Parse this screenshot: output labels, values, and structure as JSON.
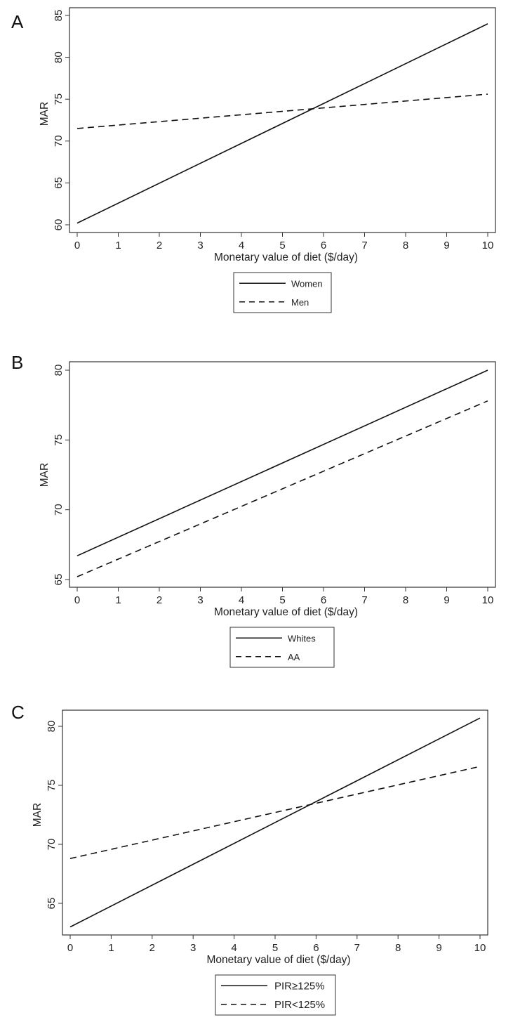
{
  "figure": {
    "panels": [
      {
        "letter": "A",
        "ylabel": "MAR",
        "xlabel": "Monetary value of diet ($/day)",
        "legend": [
          "Women",
          "Men"
        ]
      },
      {
        "letter": "B",
        "ylabel": "MAR",
        "xlabel": "Monetary value of diet ($/day)",
        "legend": [
          "Whites",
          "AA"
        ]
      },
      {
        "letter": "C",
        "ylabel": "MAR",
        "xlabel": "Monetary value of diet ($/day)",
        "legend": [
          "PIR≥125%",
          "PIR<125%"
        ]
      }
    ]
  },
  "chart_data": [
    {
      "panel": "A",
      "type": "line",
      "title": "",
      "xlabel": "Monetary value of diet ($/day)",
      "ylabel": "MAR",
      "x": [
        0,
        10
      ],
      "xlim": [
        0,
        10
      ],
      "ylim": [
        59,
        86
      ],
      "xticks": [
        0,
        1,
        2,
        3,
        4,
        5,
        6,
        7,
        8,
        9,
        10
      ],
      "yticks": [
        60,
        65,
        70,
        75,
        80,
        85
      ],
      "grid": false,
      "legend_position": "bottom-center",
      "series": [
        {
          "name": "Women",
          "style": "solid",
          "values": [
            60.2,
            84.0
          ]
        },
        {
          "name": "Men",
          "style": "dashed",
          "values": [
            71.5,
            75.6
          ]
        }
      ]
    },
    {
      "panel": "B",
      "type": "line",
      "title": "",
      "xlabel": "Monetary value of diet ($/day)",
      "ylabel": "MAR",
      "x": [
        0,
        10
      ],
      "xlim": [
        0,
        10
      ],
      "ylim": [
        64.5,
        80.6
      ],
      "xticks": [
        0,
        1,
        2,
        3,
        4,
        5,
        6,
        7,
        8,
        9,
        10
      ],
      "yticks": [
        65,
        70,
        75,
        80
      ],
      "grid": false,
      "legend_position": "bottom-center",
      "series": [
        {
          "name": "Whites",
          "style": "solid",
          "values": [
            66.7,
            80.0
          ]
        },
        {
          "name": "AA",
          "style": "dashed",
          "values": [
            65.2,
            77.8
          ]
        }
      ]
    },
    {
      "panel": "C",
      "type": "line",
      "title": "",
      "xlabel": "Monetary value of diet ($/day)",
      "ylabel": "MAR",
      "x": [
        0,
        10
      ],
      "xlim": [
        0,
        10
      ],
      "ylim": [
        62.3,
        81.4
      ],
      "xticks": [
        0,
        1,
        2,
        3,
        4,
        5,
        6,
        7,
        8,
        9,
        10
      ],
      "yticks": [
        65,
        70,
        75,
        80
      ],
      "grid": false,
      "legend_position": "bottom-center",
      "series": [
        {
          "name": "PIR≥125%",
          "style": "solid",
          "values": [
            63.0,
            80.7
          ]
        },
        {
          "name": "PIR<125%",
          "style": "dashed",
          "values": [
            68.8,
            76.6
          ]
        }
      ]
    }
  ]
}
